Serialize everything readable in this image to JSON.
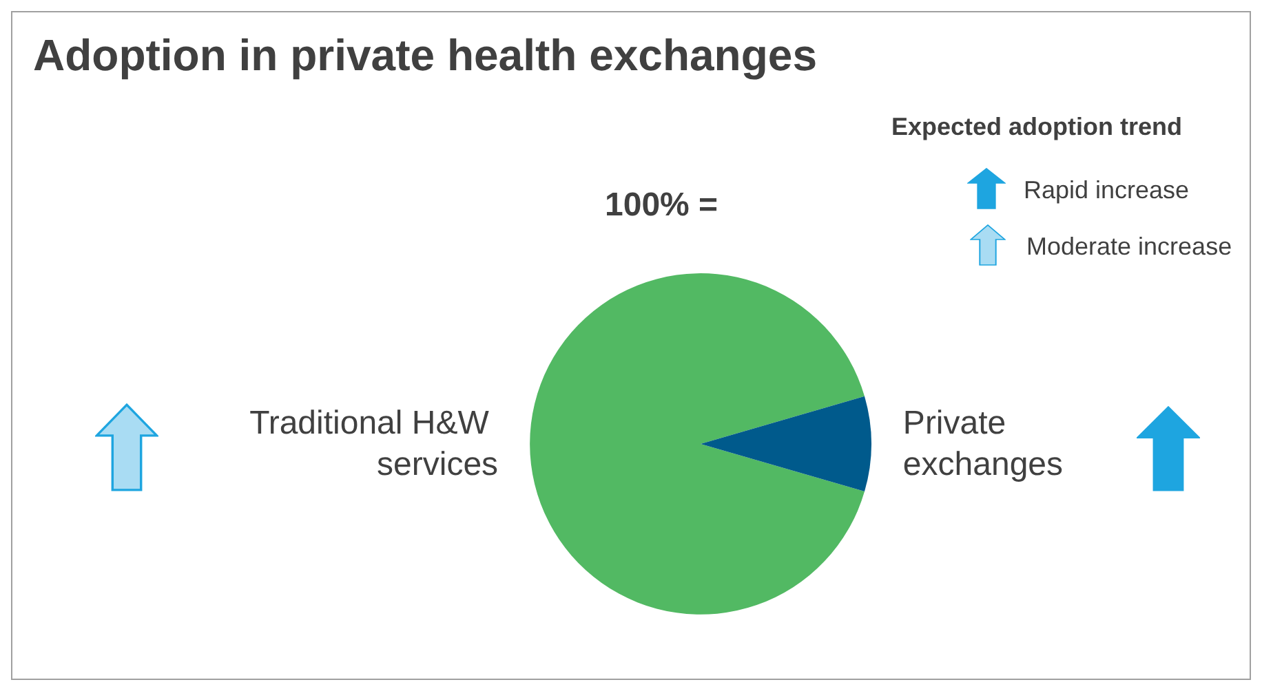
{
  "chart_data": {
    "type": "pie",
    "title": "Adoption in private health exchanges",
    "categories": [
      "Traditional H&W services",
      "Private exchanges"
    ],
    "values": [
      91,
      9
    ],
    "colors": [
      "#52b963",
      "#005a8c"
    ],
    "legend_title": "Expected adoption trend",
    "annotations": [
      "100% =",
      "Rapid increase",
      "Moderate increase"
    ]
  }
}
